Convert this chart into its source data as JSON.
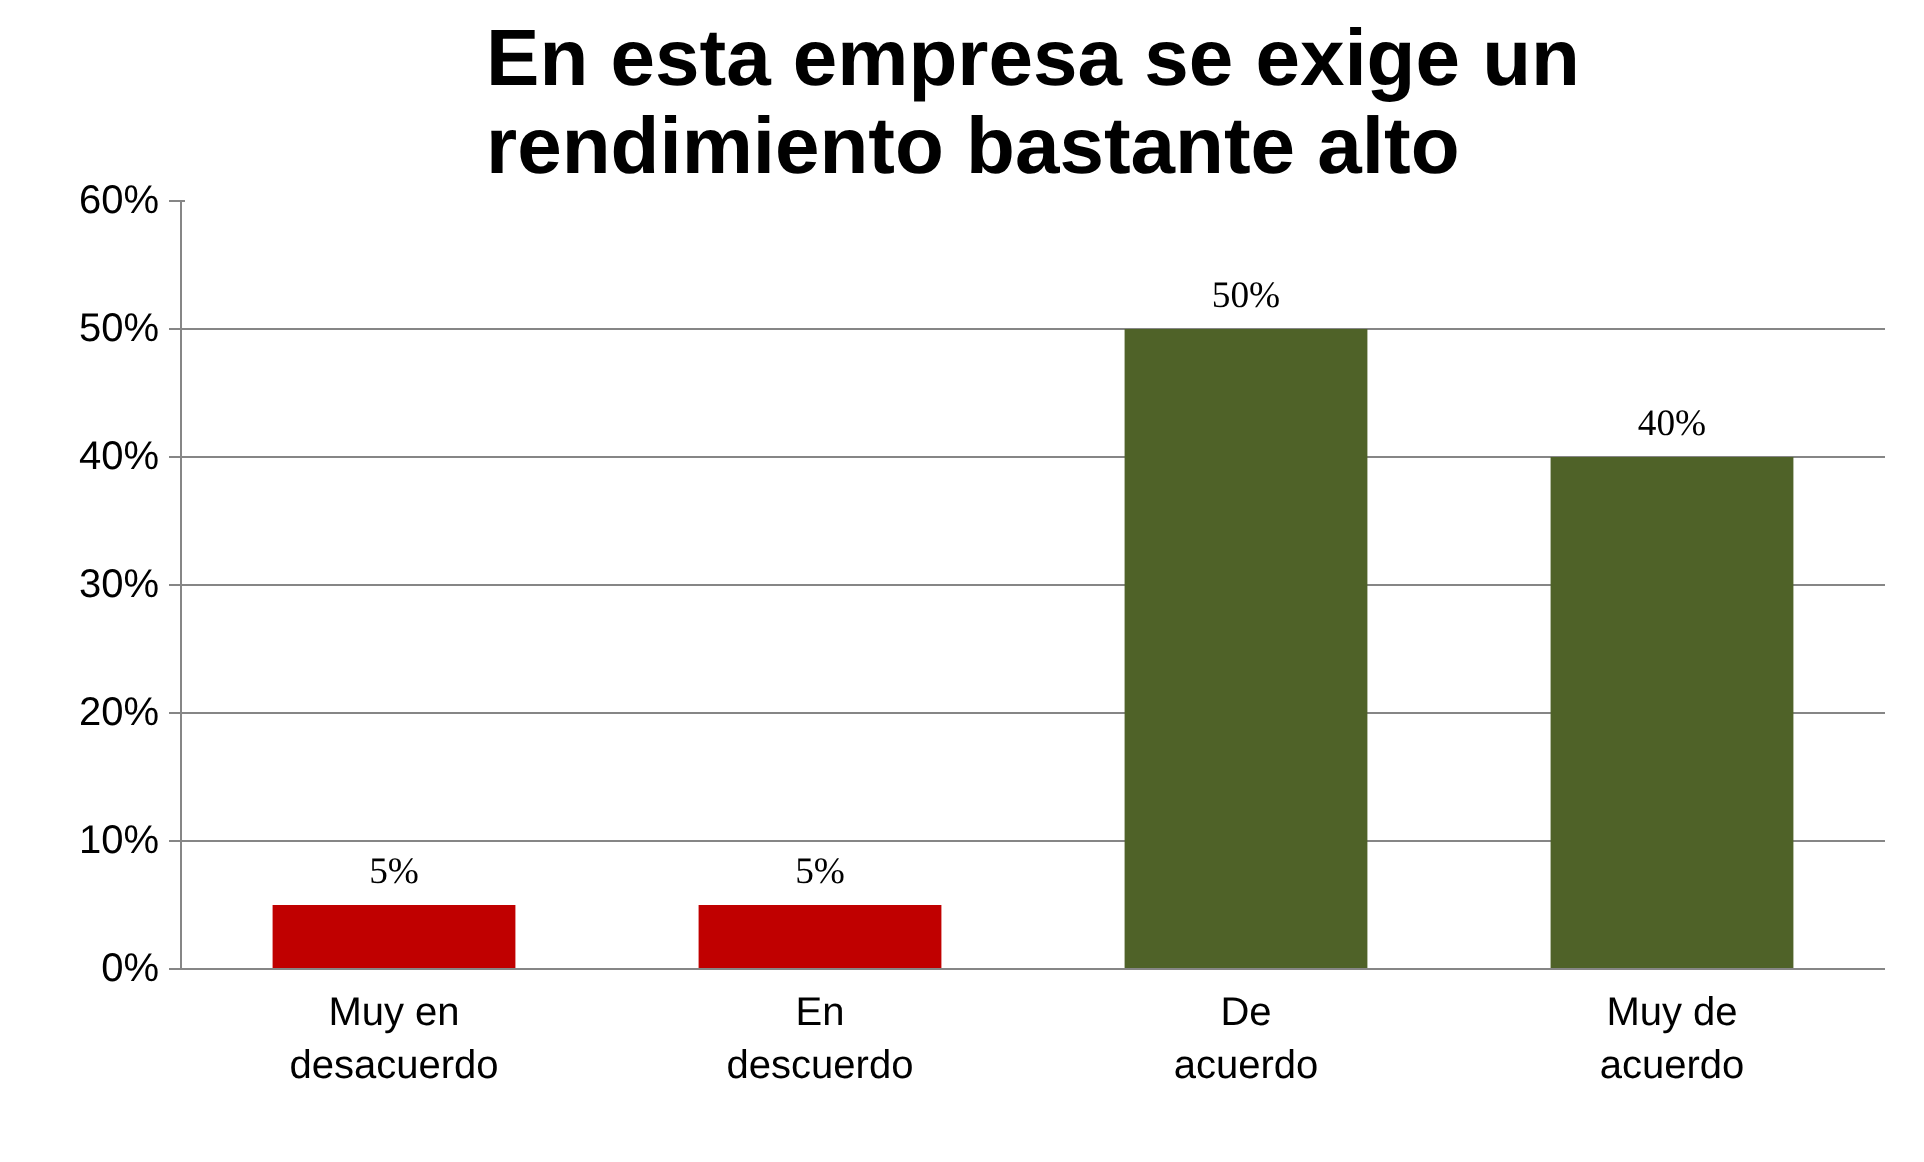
{
  "chart_data": {
    "type": "bar",
    "title": "En esta empresa se exige un rendimiento bastante alto",
    "categories": [
      "Muy en desacuerdo",
      "En descuerdo",
      "De acuerdo",
      "Muy de acuerdo"
    ],
    "values": [
      5,
      5,
      50,
      40
    ],
    "colors": [
      "#c00000",
      "#c00000",
      "#4f6228",
      "#4f6228"
    ],
    "value_labels": [
      "5%",
      "5%",
      "50%",
      "40%"
    ],
    "ylim": [
      0,
      60
    ],
    "yticks": [
      {
        "value": 0,
        "label": "0%"
      },
      {
        "value": 10,
        "label": "10%"
      },
      {
        "value": 20,
        "label": "20%"
      },
      {
        "value": 30,
        "label": "30%"
      },
      {
        "value": 40,
        "label": "40%"
      },
      {
        "value": 50,
        "label": "50%"
      },
      {
        "value": 60,
        "label": "60%"
      }
    ],
    "grid": "y"
  }
}
